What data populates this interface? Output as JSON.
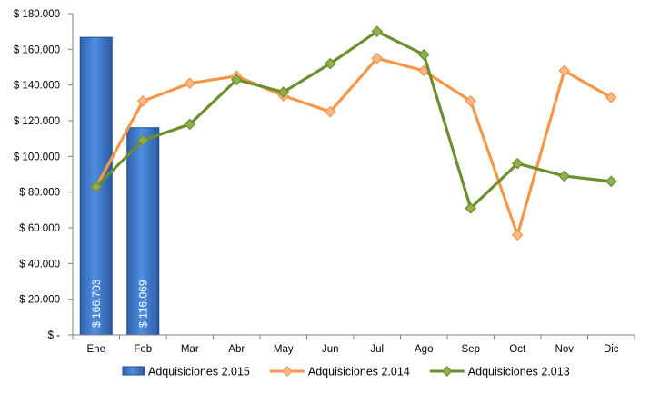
{
  "chart_data": {
    "type": "bar-line",
    "categories": [
      "Ene",
      "Feb",
      "Mar",
      "Abr",
      "May",
      "Jun",
      "Jul",
      "Ago",
      "Sep",
      "Oct",
      "Nov",
      "Dic"
    ],
    "ylim": [
      0,
      180000
    ],
    "y_ticks": [
      0,
      20000,
      40000,
      60000,
      80000,
      100000,
      120000,
      140000,
      160000,
      180000
    ],
    "y_tick_labels": [
      "$ -",
      "$ 20.000",
      "$ 40.000",
      "$ 60.000",
      "$ 80.000",
      "$ 100.000",
      "$ 120.000",
      "$ 140.000",
      "$ 160.000",
      "$ 180.000"
    ],
    "grid": false,
    "legend_position": "bottom",
    "series": [
      {
        "name": "Adquisiciones 2.015",
        "kind": "bar",
        "color": "#3a72c4",
        "values": [
          166703,
          116069,
          null,
          null,
          null,
          null,
          null,
          null,
          null,
          null,
          null,
          null
        ],
        "data_labels": [
          "$ 166.703",
          "$ 116.069"
        ]
      },
      {
        "name": "Adquisiciones 2.014",
        "kind": "line",
        "color": "#f79646",
        "marker_fill": "#f9b98a",
        "values": [
          83000,
          131000,
          141000,
          145000,
          134000,
          125000,
          155000,
          148000,
          131000,
          56000,
          148000,
          133000
        ]
      },
      {
        "name": "Adquisiciones 2.013",
        "kind": "line",
        "color": "#6d8e2f",
        "marker_fill": "#8fb04a",
        "values": [
          83000,
          109000,
          118000,
          143000,
          136000,
          152000,
          170000,
          157000,
          71000,
          96000,
          89000,
          86000
        ]
      }
    ]
  }
}
